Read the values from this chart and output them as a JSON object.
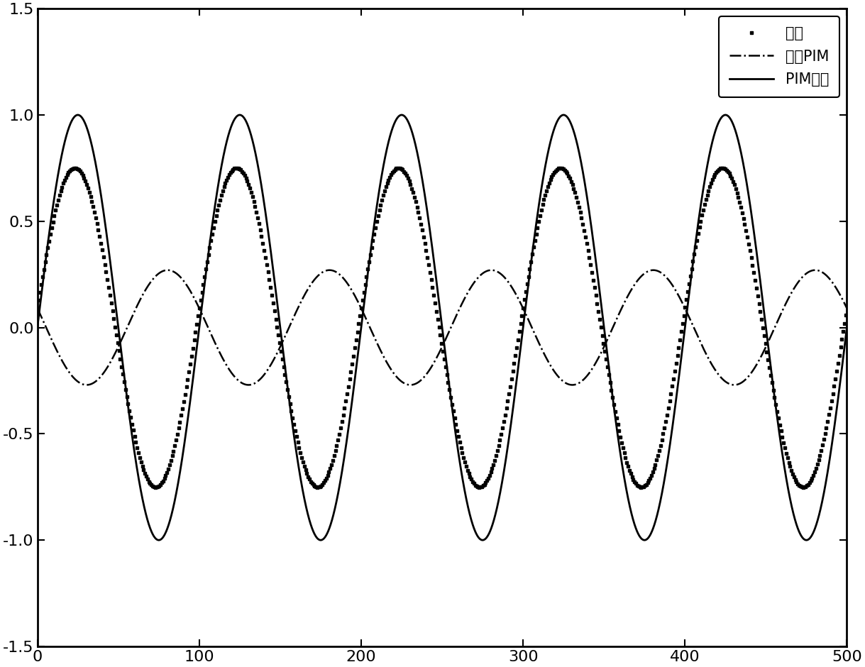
{
  "xlim": [
    0,
    500
  ],
  "ylim": [
    -1.5,
    1.5
  ],
  "xticks": [
    0,
    100,
    200,
    300,
    400,
    500
  ],
  "yticks": [
    -1.5,
    -1.0,
    -0.5,
    0.0,
    0.5,
    1.0,
    1.5
  ],
  "legend_labels": [
    "PIM干扰",
    "自身PIM",
    "合成"
  ],
  "line1_amp": 1.0,
  "line1_freq": 0.0628318,
  "line1_phase": 1.5707963,
  "line2_amp": 0.27,
  "line2_freq": 0.0628318,
  "line2_phase": 2.8,
  "background_color": "#ffffff",
  "line_color": "#000000"
}
